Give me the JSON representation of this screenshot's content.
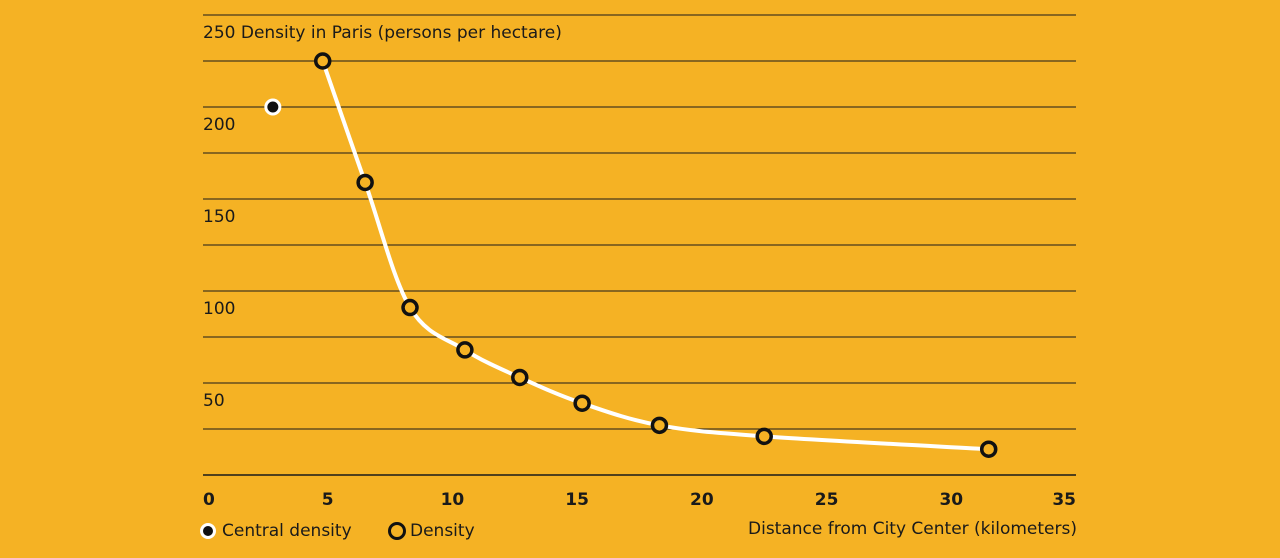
{
  "chart_data": {
    "type": "line",
    "title": "Density in Paris (persons per hectare)",
    "xlabel": "Distance from City Center (kilometers)",
    "ylabel": "",
    "xlim": [
      0,
      35
    ],
    "ylim": [
      0,
      250
    ],
    "x_ticks": [
      0,
      5,
      10,
      15,
      20,
      25,
      30,
      35
    ],
    "y_ticks_labeled": [
      50,
      100,
      150,
      200,
      250
    ],
    "grid": true,
    "legend_placement": "bottom-left",
    "series": [
      {
        "name": "Central density",
        "style": "filled-dot",
        "x": [
          2.8
        ],
        "y": [
          200
        ]
      },
      {
        "name": "Density",
        "style": "ring-marker-with-line",
        "x": [
          4.8,
          6.5,
          8.3,
          10.5,
          12.7,
          15.2,
          18.3,
          22.5,
          31.5
        ],
        "y": [
          225,
          159,
          91,
          68,
          53,
          39,
          27,
          21,
          14
        ]
      }
    ],
    "colors": {
      "background": "#F5B224",
      "line": "#FFFFFF",
      "marker": "#111111",
      "grid": "#1a1a1a"
    }
  },
  "legend": {
    "central_label": "Central density",
    "density_label": "Density"
  }
}
